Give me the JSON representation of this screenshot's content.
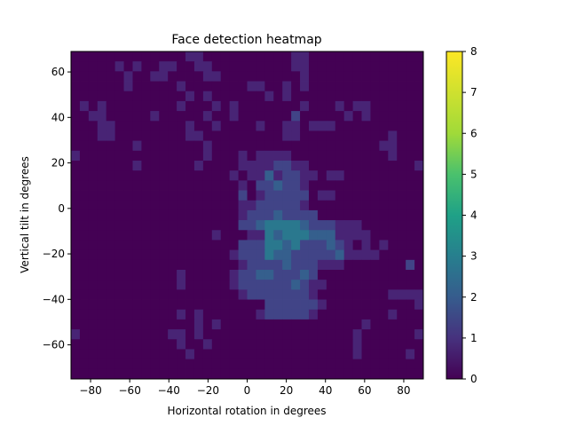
{
  "chart_data": {
    "type": "heatmap",
    "title": "Face detection heatmap",
    "xlabel": "Horizontal rotation in degrees",
    "ylabel": "Vertical tilt in degrees",
    "xlim": [
      -90,
      90
    ],
    "ylim": [
      -75,
      69
    ],
    "xticks": [
      -80,
      -60,
      -40,
      -20,
      0,
      20,
      40,
      60,
      80
    ],
    "yticks": [
      -60,
      -40,
      -20,
      0,
      20,
      40,
      60
    ],
    "colorbar": {
      "min": 0,
      "max": 8,
      "ticks": [
        0,
        1,
        2,
        3,
        4,
        5,
        6,
        7,
        8
      ],
      "colormap": "viridis"
    },
    "grid": false,
    "rows_top_to_bottom": [
      "000000000000000000000110000000000000000000000000000000000000000000000000",
      "000000000000000000000000000000000000000000000000000000000000000000000000",
      "000000000000000000000000000000000000000000000000000000000000000000000000",
      "000000000000000000000000000000000000000000000000000000000000000000000000",
      "000000000000000000000000000000000000000000000000000000000000000000000000",
      "000000000000000000000000000000000000000000000000000000000000000000000000",
      "000000000000000000000000000000000000000000000000000000000000000000000000",
      "000000000000000000000000000000000000000000000000000000000000000000000000",
      "000000000000000000000000000000000000000000000000000000000000000000000000",
      "000000000000000000000000000000000000000000000000000000000000000000000000"
    ],
    "cells": [
      "0000000000000110000000000110000000000000",
      "0000010100110011000000000110000000000000",
      "0000001001100001100000000010000000000000",
      "0000001000001000000011001010000000000000",
      "0000000000000101000000101000000000000000",
      "0101000000001000101000000010001011000000",
      "0011000001000001001000000200000101000000",
      "0001100000000100100001001101110000000000",
      "0001100000000110000000001100000000001000",
      "0000000100000001000000000000000000011000",
      "1000000000000001000101111000000000001000",
      "0000000100000010000111122110000000000001",
      "0000000000000000001011312211011000000000",
      "0000000000000000000102232210000000000000",
      "0000000000000000000201222220110000000000",
      "0000000000000000000112222210000000000000",
      "0000000000000000000122232222000000000000",
      "0000000000000000000223444432221110000000",
      "0000000000000000100011434443331111000000",
      "0000000000000000000222443422232101010000",
      "0000000000000000001222433222223111100000",
      "0000000000000000000122223222111000000020",
      "0000000000001000001223322232000000000000",
      "0000000000001000001222222321100000000000",
      "0000000000000000000122222221000000001111",
      "0000000000000000000000222222100000000001",
      "0000000000001010000001222221000000001000",
      "0000000000000010100000000000000001000000",
      "1000000000011010000000000000000010000001",
      "0000000000001001000000000000000010000000",
      "0000000000000100000000000000000010000010",
      "0000000000000000000000000000000000000000",
      "0000000000000000000000000000000000000000"
    ],
    "cell_size_degrees": 4.5
  }
}
